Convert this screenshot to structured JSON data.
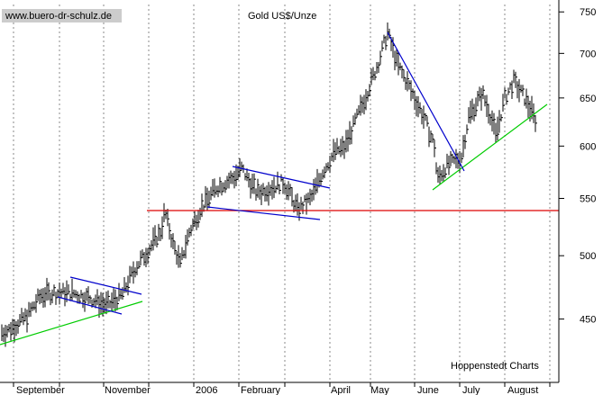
{
  "watermark": "www.buero-dr-schulz.de",
  "credit": "Hoppenstedt Charts",
  "colors": {
    "bars": "#000000",
    "grid": "#888888",
    "trend": "#0000cc",
    "support": "#00cc00",
    "horizontal_line": "#dd0000",
    "watermark_bg": "#cccccc"
  },
  "chart_data": {
    "type": "ohlc",
    "title": "Gold US$/Unze",
    "y_scale": "log",
    "ylim": [
      405,
      765
    ],
    "y_ticks": [
      450,
      500,
      550,
      600,
      650,
      700,
      750
    ],
    "y_axis_side": "right",
    "grid": "vertical-dotted",
    "x_ticks": [
      "September",
      "November",
      "2006",
      "February",
      "April",
      "May",
      "June",
      "July",
      "August"
    ],
    "close_points": [
      {
        "label": "September",
        "value": 440
      },
      {
        "label": "November",
        "value": 462
      },
      {
        "label": "2006",
        "value": 525
      },
      {
        "label": "February",
        "value": 565
      },
      {
        "label": "April",
        "value": 590
      },
      {
        "label": "May",
        "value": 700
      },
      {
        "label": "June",
        "value": 570
      },
      {
        "label": "July",
        "value": 640
      },
      {
        "label": "August",
        "value": 630
      }
    ],
    "horizontal_level": 541
  }
}
